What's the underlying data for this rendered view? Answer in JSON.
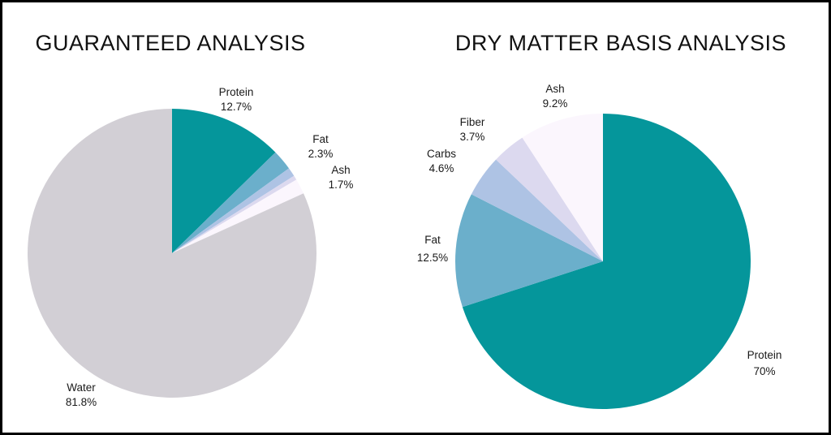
{
  "colors": {
    "teal": "#05969b",
    "blue": "#6bafcb",
    "periwinkle": "#aec3e4",
    "lavender": "#dcd9ef",
    "pale": "#fbf6fd",
    "gray": "#d2cfd5"
  },
  "chart_data": [
    {
      "type": "pie",
      "title": "GUARANTEED ANALYSIS",
      "start_angle_deg": 0,
      "direction": "clockwise",
      "slices": [
        {
          "label": "Protein",
          "value_text": "12.7%",
          "value": 12.7,
          "color": "#05969b"
        },
        {
          "label": "Fat",
          "value_text": "2.3%",
          "value": 2.3,
          "color": "#6bafcb"
        },
        {
          "label": "",
          "value_text": "",
          "value": 1.0,
          "color": "#aec3e4"
        },
        {
          "label": "",
          "value_text": "",
          "value": 0.5,
          "color": "#dcd9ef"
        },
        {
          "label": "Ash",
          "value_text": "1.7%",
          "value": 1.7,
          "color": "#fbf6fd"
        },
        {
          "label": "Water",
          "value_text": "81.8%",
          "value": 81.8,
          "color": "#d2cfd5"
        }
      ]
    },
    {
      "type": "pie",
      "title": "DRY MATTER BASIS ANALYSIS",
      "start_angle_deg": 0,
      "direction": "clockwise",
      "slices": [
        {
          "label": "Protein",
          "value_text": "70%",
          "value": 70,
          "color": "#05969b"
        },
        {
          "label": "Fat",
          "value_text": "12.5%",
          "value": 12.5,
          "color": "#6bafcb"
        },
        {
          "label": "Carbs",
          "value_text": "4.6%",
          "value": 4.6,
          "color": "#aec3e4"
        },
        {
          "label": "Fiber",
          "value_text": "3.7%",
          "value": 3.7,
          "color": "#dcd9ef"
        },
        {
          "label": "Ash",
          "value_text": "9.2%",
          "value": 9.2,
          "color": "#fbf6fd"
        }
      ]
    }
  ]
}
